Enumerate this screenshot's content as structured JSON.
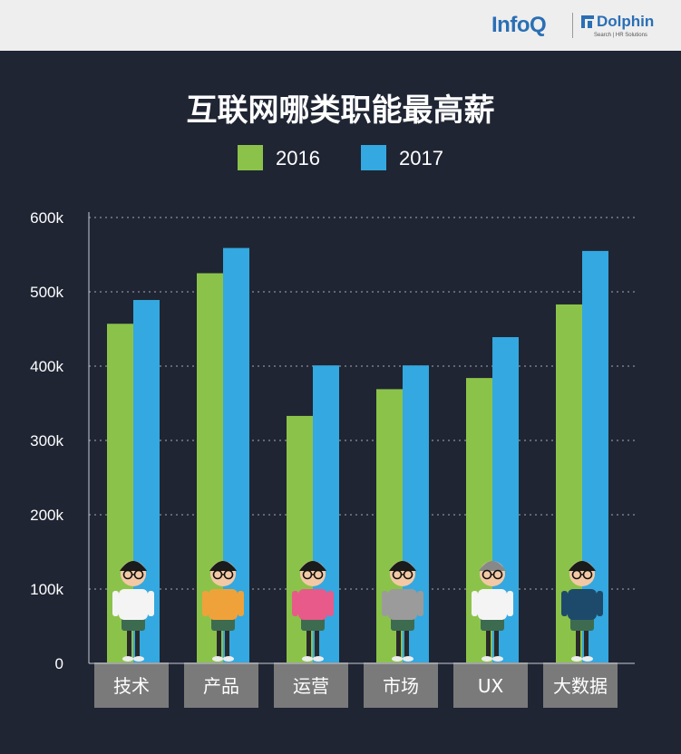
{
  "header": {
    "logo_infoq": "InfoQ",
    "logo_dolphin": "Dolphin",
    "logo_tagline": "Search | HR Solutions"
  },
  "title": "互联网哪类职能最高薪",
  "colors": {
    "background": "#1f2533",
    "series_2016": "#8bc34a",
    "series_2017": "#34a8e0",
    "label_box": "#7a7a7a"
  },
  "chart_data": {
    "type": "bar",
    "title": "互联网哪类职能最高薪",
    "categories": [
      "技术",
      "产品",
      "运营",
      "市场",
      "UX",
      "大数据"
    ],
    "series": [
      {
        "name": "2016",
        "values": [
          457,
          525,
          333,
          369,
          384,
          483
        ]
      },
      {
        "name": "2017",
        "values": [
          489,
          559,
          401,
          401,
          439,
          555
        ]
      }
    ],
    "y_ticks": [
      "0",
      "100k",
      "200k",
      "300k",
      "400k",
      "500k",
      "600k"
    ],
    "ylim": [
      0,
      600
    ],
    "grid": true,
    "legend": "top-center"
  }
}
